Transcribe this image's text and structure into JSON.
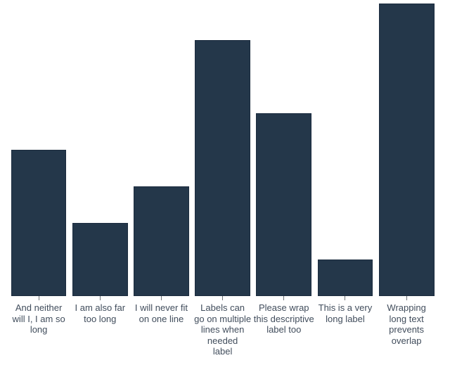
{
  "chart": {
    "background": "#ffffff",
    "bar_color": "#24374a",
    "bar_border_color": "rgba(13,27,42,0.35)",
    "tick_color": "#6f7377",
    "label_color": "#414d5c"
  },
  "chart_data": {
    "type": "bar",
    "title": "",
    "xlabel": "",
    "ylabel": "",
    "ylim": [
      0,
      8
    ],
    "grid": false,
    "legend": false,
    "axes_shown": "x category ticks only; no axis line; no y axis",
    "categories": [
      "And neither will I, I am so long",
      "I am also far too long",
      "I will never fit on one line",
      "Labels can go on multiple lines when needed label",
      "Please wrap this descriptive label too",
      "This is a very long label",
      "Wrapping long text prevents overlap"
    ],
    "values": [
      4,
      2,
      3,
      7,
      5,
      1,
      8
    ],
    "wrapped_labels": [
      [
        "And neither",
        "will I, I am so",
        "long"
      ],
      [
        "I am also far",
        "too long"
      ],
      [
        "I will never fit",
        "on one line"
      ],
      [
        "Labels can",
        "go on multiple",
        "lines when",
        "needed",
        "label"
      ],
      [
        "Please wrap",
        "this descriptive",
        "label too"
      ],
      [
        "This is a very",
        "long label"
      ],
      [
        "Wrapping",
        "long text",
        "prevents",
        "overlap"
      ]
    ]
  }
}
